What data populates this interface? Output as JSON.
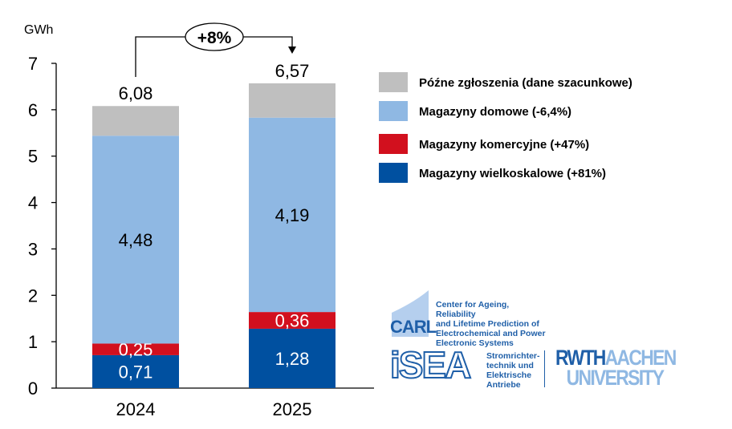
{
  "chart_data": {
    "type": "stacked-bar",
    "unit_label": "GWh",
    "categories": [
      "2024",
      "2025"
    ],
    "ylim": [
      0,
      7
    ],
    "yticks": [
      0,
      1,
      2,
      3,
      4,
      5,
      6,
      7
    ],
    "grid": false,
    "legend_position": "right",
    "series": [
      {
        "name": "Magazyny wielkoskalowe (+81%)",
        "color": "#0050a0",
        "values": [
          0.71,
          1.28
        ],
        "labels": [
          "0,71",
          "1,28"
        ]
      },
      {
        "name": "Magazyny komercyjne (+47%)",
        "color": "#d2101e",
        "values": [
          0.25,
          0.36
        ],
        "labels": [
          "0,25",
          "0,36"
        ]
      },
      {
        "name": "Magazyny domowe (-6,4%)",
        "color": "#8fb8e3",
        "values": [
          4.48,
          4.19
        ],
        "labels": [
          "4,48",
          "4,19"
        ]
      },
      {
        "name": "Późne zgłoszenia (dane szacunkowe)",
        "color": "#bfbfbf",
        "values": [
          0.64,
          0.74
        ],
        "labels": [
          "",
          ""
        ]
      }
    ],
    "totals": [
      6.08,
      6.57
    ],
    "total_labels": [
      "6,08",
      "6,57"
    ],
    "change_annotation": "+8%"
  },
  "logos": {
    "carl_abbr": "CARL",
    "carl_text": [
      "Center for Ageing, Reliability",
      "and Lifetime Prediction of",
      "Electrochemical and Power",
      "Electronic Systems"
    ],
    "isea_abbr": "iSEA",
    "isea_text": [
      "Stromrichter-",
      "technik und",
      "Elektrische",
      "Antriebe"
    ],
    "rwth_a": "RWTH",
    "rwth_b": "AACHEN",
    "rwth_c": "UNIVERSITY"
  }
}
